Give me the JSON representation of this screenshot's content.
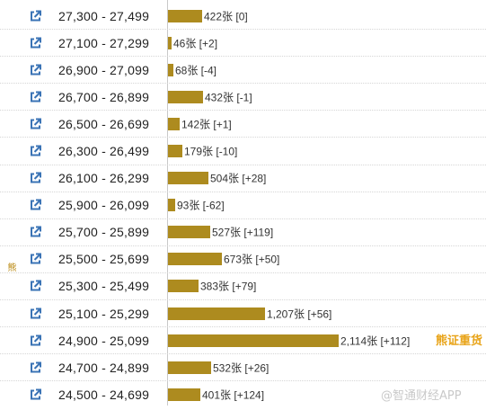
{
  "side_label": "熊",
  "colors": {
    "bar": "#ad8b1f",
    "link_icon": "#3a73b5"
  },
  "icon_name": "external-link-icon",
  "rows": [
    {
      "range": "27,300 - 27,499",
      "value": 422,
      "label": "422张 [0]"
    },
    {
      "range": "27,100 - 27,299",
      "value": 46,
      "label": "46张 [+2]"
    },
    {
      "range": "26,900 - 27,099",
      "value": 68,
      "label": "68张 [-4]"
    },
    {
      "range": "26,700 - 26,899",
      "value": 432,
      "label": "432张 [-1]"
    },
    {
      "range": "26,500 - 26,699",
      "value": 142,
      "label": "142张 [+1]"
    },
    {
      "range": "26,300 - 26,499",
      "value": 179,
      "label": "179张 [-10]"
    },
    {
      "range": "26,100 - 26,299",
      "value": 504,
      "label": "504张 [+28]"
    },
    {
      "range": "25,900 - 26,099",
      "value": 93,
      "label": "93张 [-62]"
    },
    {
      "range": "25,700 - 25,899",
      "value": 527,
      "label": "527张 [+119]"
    },
    {
      "range": "25,500 - 25,699",
      "value": 673,
      "label": "673张 [+50]"
    },
    {
      "range": "25,300 - 25,499",
      "value": 383,
      "label": "383张 [+79]"
    },
    {
      "range": "25,100 - 25,299",
      "value": 1207,
      "label": "1,207张 [+56]"
    },
    {
      "range": "24,900 - 25,099",
      "value": 2114,
      "label": "2,114张 [+112]"
    },
    {
      "range": "24,700 - 24,899",
      "value": 532,
      "label": "532张 [+26]"
    },
    {
      "range": "24,500 - 24,699",
      "value": 401,
      "label": "401张 [+124]"
    }
  ],
  "max_value": 2114,
  "watermark_gold": "熊证重货",
  "watermark_grey": "@智通财经APP"
}
